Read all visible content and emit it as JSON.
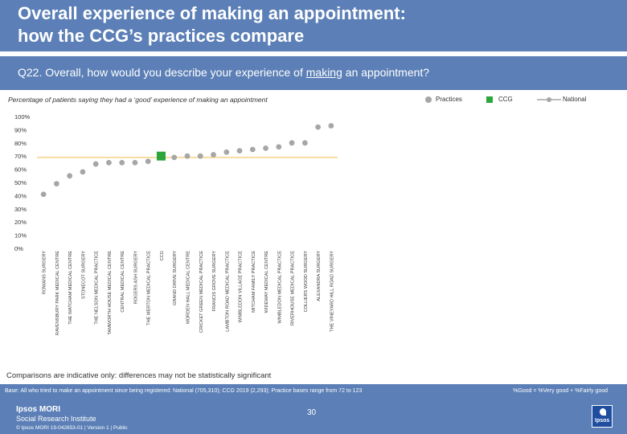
{
  "header": {
    "title_line1": "Overall experience of making an appointment:",
    "title_line2": "how the CCG’s practices compare"
  },
  "question": {
    "prefix": "Q22. Overall, how would you describe your experience of ",
    "underlined": "making",
    "suffix": " an appointment?"
  },
  "subtitle": "Percentage of patients saying they had a ‘good’ experience of making an appointment",
  "legend": {
    "practices": "Practices",
    "ccg": "CCG",
    "national": "National"
  },
  "colors": {
    "brand_blue": "#5b7fb6",
    "practice_marker": "#a6a6a6",
    "ccg_marker": "#2aa63b",
    "national_line": "#f2c86c"
  },
  "chart_data": {
    "type": "scatter",
    "title": "",
    "xlabel": "",
    "ylabel": "",
    "ylim": [
      0,
      100
    ],
    "y_ticks": [
      "0%",
      "10%",
      "20%",
      "30%",
      "40%",
      "50%",
      "60%",
      "70%",
      "80%",
      "90%",
      "100%"
    ],
    "national_value": 69,
    "categories": [
      "ROWANS SURGERY",
      "RAVENSBURY PARK MEDICAL CENTRE",
      "THE WATCHAM MEDICAL CENTRE",
      "STONECOT SURGERY",
      "THE NELSON MEDICAL PRACTICE",
      "TAMWORTH HOUSE MEDICAL CENTRE",
      "CENTRAL MEDICAL CENTRE",
      "ROGERS ASH SURGERY",
      "THE MERTON MEDICAL PRACTICE",
      "CCG",
      "GRAND DRIVE SURGERY",
      "MORDEN HALL MEDICAL CENTRE",
      "CRICKET GREEN MEDICAL PRACTICE",
      "FRANCIS GROVE SURGERY",
      "LAMBTON ROAD MEDICAL PRACTICE",
      "WIMBLEDON VILLAGE PRACTICE",
      "MITCHAM FAMILY PRACTICE",
      "WIDEWAY MEDICAL CENTRE",
      "WIMBLEDON MEDICAL PRACTICE",
      "RIVERHOUSE MEDICAL PRACTICE",
      "COLLIERS WOOD SURGERY",
      "ALEXANDRA SURGERY",
      "THE VINEYARD HILL ROAD SURGERY"
    ],
    "values": [
      41,
      49,
      55,
      58,
      64,
      65,
      65,
      65,
      66,
      70,
      69,
      70,
      70,
      71,
      73,
      74,
      75,
      76,
      77,
      80,
      80,
      92,
      93
    ],
    "ccg_index": 9
  },
  "note": "Comparisons are indicative only: differences may not be statistically significant",
  "base_text": "Base: All who tried to make an appointment since being registered: National (705,310); CCG 2019 (2,293); Practice bases range from 72 to 123",
  "base_right": "%Good = %Very good + %Fairly good",
  "footer": {
    "brand_line1": "Ipsos MORI",
    "brand_line2": "Social Research Institute",
    "legal": "© Ipsos MORI      19-042653-01 | Version 1 | Public",
    "page_number": "30",
    "logo_text": "Ipsos"
  }
}
